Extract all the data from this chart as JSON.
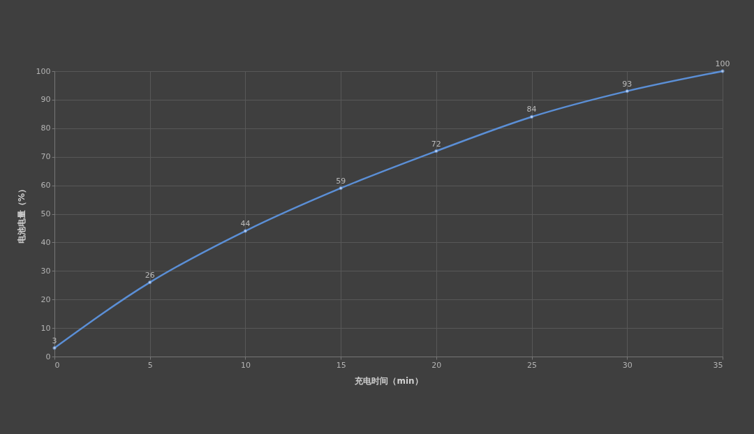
{
  "chart_data": {
    "type": "line",
    "xlabel": "充电时间（min）",
    "ylabel": "电池电量（%）",
    "x": [
      0,
      5,
      10,
      15,
      20,
      25,
      30,
      35
    ],
    "series": [
      {
        "color": "#5b8fd6",
        "values": [
          3,
          26,
          44,
          59,
          72,
          84,
          93,
          100
        ]
      }
    ],
    "xlim": [
      0,
      35
    ],
    "xticks": [
      0,
      5,
      10,
      15,
      20,
      25,
      30,
      35
    ],
    "ylim": [
      0,
      100
    ],
    "yticks": [
      0,
      10,
      20,
      30,
      40,
      50,
      60,
      70,
      80,
      90,
      100
    ],
    "grid": true,
    "marker": "circle",
    "data_labels": true
  }
}
